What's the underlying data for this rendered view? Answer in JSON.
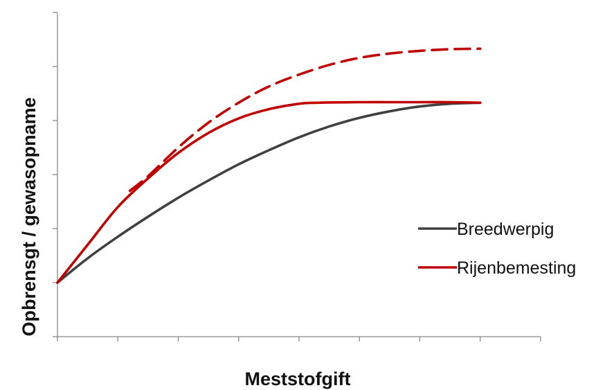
{
  "chart_data": {
    "type": "line",
    "title": "",
    "xlabel": "Meststofgift",
    "ylabel": "Opbrensgt / gewasopname",
    "xlim": [
      0,
      8
    ],
    "ylim": [
      0,
      6
    ],
    "x_ticks": [
      0,
      1,
      2,
      3,
      4,
      5,
      6,
      7,
      8
    ],
    "y_ticks": [
      0,
      1,
      2,
      3,
      4,
      5,
      6
    ],
    "tick_labels_shown": false,
    "grid": false,
    "legend": {
      "placement": "right",
      "entries": [
        "Breedwerpig",
        "Rijenbemesting"
      ]
    },
    "series": [
      {
        "name": "Breedwerpig",
        "color": "#404040",
        "dash": "solid",
        "x": [
          0,
          0.5,
          1,
          1.5,
          2,
          2.5,
          3,
          3.5,
          4,
          4.5,
          5,
          5.5,
          6,
          6.5,
          7
        ],
        "y": [
          1.0,
          1.45,
          1.85,
          2.22,
          2.57,
          2.89,
          3.19,
          3.45,
          3.69,
          3.89,
          4.05,
          4.17,
          4.26,
          4.31,
          4.33
        ]
      },
      {
        "name": "Rijenbemesting",
        "color": "#c00000",
        "dash": "solid",
        "x": [
          0,
          0.5,
          1,
          1.5,
          2,
          2.5,
          3,
          3.5,
          4,
          4.3,
          5,
          5.5,
          6,
          6.5,
          7
        ],
        "y": [
          1.0,
          1.7,
          2.4,
          2.93,
          3.4,
          3.77,
          4.04,
          4.21,
          4.31,
          4.33,
          4.34,
          4.34,
          4.34,
          4.34,
          4.33
        ]
      },
      {
        "name": "",
        "color": "#c00000",
        "dash": "dashed",
        "x": [
          1.2,
          1.5,
          2,
          2.5,
          3,
          3.5,
          4,
          4.5,
          5,
          5.5,
          6,
          6.5,
          7
        ],
        "y": [
          2.7,
          2.97,
          3.5,
          3.96,
          4.33,
          4.63,
          4.85,
          5.03,
          5.16,
          5.24,
          5.29,
          5.32,
          5.33
        ]
      }
    ]
  }
}
